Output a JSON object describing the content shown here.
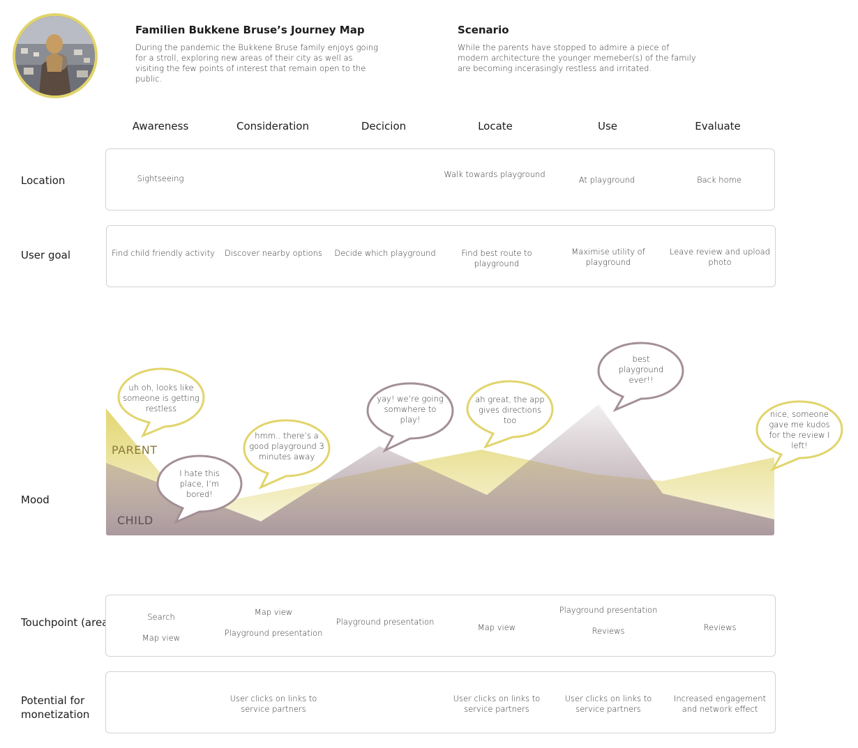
{
  "header": {
    "journey_title": "Familien Bukkene Bruse’s Journey Map",
    "journey_desc": "During the pandemic the Bukkene Bruse family enjoys going for a stroll, exploring new areas of their city as well as visiting the few points of interest that remain open to the public.",
    "scenario_title": "Scenario",
    "scenario_desc": "While the parents have stopped to admire a piece of modern architecture the younger memeber(s) of the family are becoming incerasingly restless and irritated."
  },
  "stages": [
    "Awareness",
    "Consideration",
    "Decicion",
    "Locate",
    "Use",
    "Evaluate"
  ],
  "rows": {
    "location": {
      "label": "Location",
      "cells": [
        "Sightseeing",
        "",
        "",
        "Walk towards playground",
        "At playground",
        "Back home"
      ]
    },
    "user_goal": {
      "label": "User goal",
      "cells": [
        "Find child friendly activity",
        "Discover nearby options",
        "Decide which playground",
        "Find best route to playground",
        "Maximise utility of playground",
        "Leave review and upload photo"
      ]
    },
    "mood": {
      "label": "Mood",
      "parent_label": "PARENT",
      "child_label": "CHILD"
    },
    "touchpoint": {
      "label": "Touchpoint (area of app)",
      "cells": [
        "Search\n\nMap view",
        "Map view\n\nPlayground presentation",
        "Playground presentation",
        "Map view",
        "Playground presentation\n\nReviews",
        "Reviews"
      ]
    },
    "monetization": {
      "label": "Potential for monetization",
      "cells": [
        "",
        "User clicks on links to service partners",
        "",
        "User clicks on links to service partners",
        "User clicks on links to service partners",
        "Increased engagement and network effect"
      ]
    }
  },
  "bubbles": [
    {
      "text": "uh oh, looks like someone is getting restless",
      "who": "parent"
    },
    {
      "text": "I hate this place, I’m bored!",
      "who": "child"
    },
    {
      "text": "hmm.. there’s a good playground 3 minutes away",
      "who": "parent"
    },
    {
      "text": "yay! we’re going somwhere to play!",
      "who": "child"
    },
    {
      "text": "ah great, the app gives directions too",
      "who": "parent"
    },
    {
      "text": "best playground ever!!",
      "who": "child"
    },
    {
      "text": "nice, someone gave me kudos for the review I left!",
      "who": "parent"
    }
  ],
  "colors": {
    "parent": "#e1d46b",
    "child": "#a38f96"
  }
}
